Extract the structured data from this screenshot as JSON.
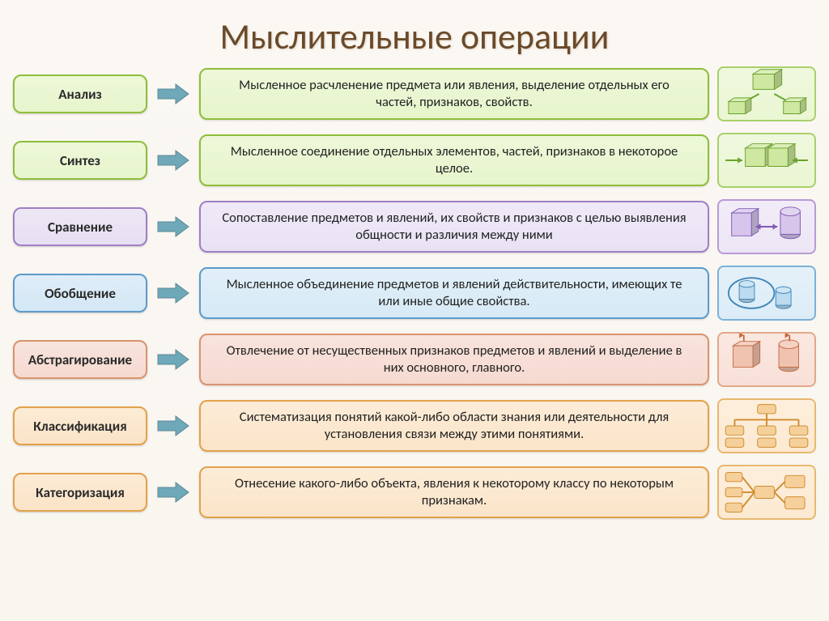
{
  "title": "Мыслительные операции",
  "arrow_fill": "#6fa8b8",
  "colors": {
    "green": {
      "term_bg": "#e7f5cc",
      "term_border": "#8fbe3a",
      "desc_bg": "#e7f5cc",
      "desc_border": "#8fbe3a",
      "icon_bg": "#eaf6d3",
      "icon_border": "#a9d06a",
      "shape_fill": "#cfe8a1",
      "shape_stroke": "#6aa22b"
    },
    "purple": {
      "term_bg": "#e7dff2",
      "term_border": "#9f7fc6",
      "desc_bg": "#e9e2f4",
      "desc_border": "#9f7fc6",
      "icon_bg": "#ede6f6",
      "icon_border": "#b79bd6",
      "shape_fill": "#d7c5ec",
      "shape_stroke": "#7f5ab0"
    },
    "blue": {
      "term_bg": "#d4e7f5",
      "term_border": "#5c9bcb",
      "desc_bg": "#d7eaf6",
      "desc_border": "#5c9bcb",
      "icon_bg": "#dcecf7",
      "icon_border": "#7bb1d8",
      "shape_fill": "#bcdbef",
      "shape_stroke": "#3e85b8"
    },
    "red": {
      "term_bg": "#f6dad1",
      "term_border": "#d9946f",
      "desc_bg": "#f6dad1",
      "desc_border": "#d9946f",
      "icon_bg": "#f8e0d7",
      "icon_border": "#e2a888",
      "shape_fill": "#f0c3b0",
      "shape_stroke": "#c56a42"
    },
    "orange": {
      "term_bg": "#fbe4c7",
      "term_border": "#e2a24b",
      "desc_bg": "#fbe5c9",
      "desc_border": "#e2a24b",
      "icon_bg": "#fce9d1",
      "icon_border": "#e8b86f",
      "shape_fill": "#f5d09a",
      "shape_stroke": "#cf8b2e"
    }
  },
  "rows": [
    {
      "term": "Анализ",
      "desc": "Мысленное расчленение предмета или явления, выделение отдельных его частей, признаков, свойств.",
      "color": "green",
      "icon": "analysis"
    },
    {
      "term": "Синтез",
      "desc": "Мысленное соединение отдельных элементов, частей, признаков в некоторое целое.",
      "color": "green",
      "icon": "synthesis"
    },
    {
      "term": "Сравнение",
      "desc": "Сопоставление предметов и явлений, их свойств и признаков с целью выявления общности и различия между ними",
      "color": "purple",
      "icon": "comparison"
    },
    {
      "term": "Обобщение",
      "desc": "Мысленное объединение предметов и явлений действительности, имеющих те или иные общие свойства.",
      "color": "blue",
      "icon": "generalization"
    },
    {
      "term": "Абстрагирование",
      "desc": "Отвлечение от несущественных признаков предметов и явлений и выделение в них основного, главного.",
      "color": "red",
      "icon": "abstraction"
    },
    {
      "term": "Классификация",
      "desc": "Систематизация понятий какой-либо области знания или деятельности для установления связи между этими понятиями.",
      "color": "orange",
      "icon": "classification"
    },
    {
      "term": "Категоризация",
      "desc": "Отнесение какого-либо объекта, явления к некоторому классу по некоторым признакам.",
      "color": "orange",
      "icon": "categorization"
    }
  ]
}
